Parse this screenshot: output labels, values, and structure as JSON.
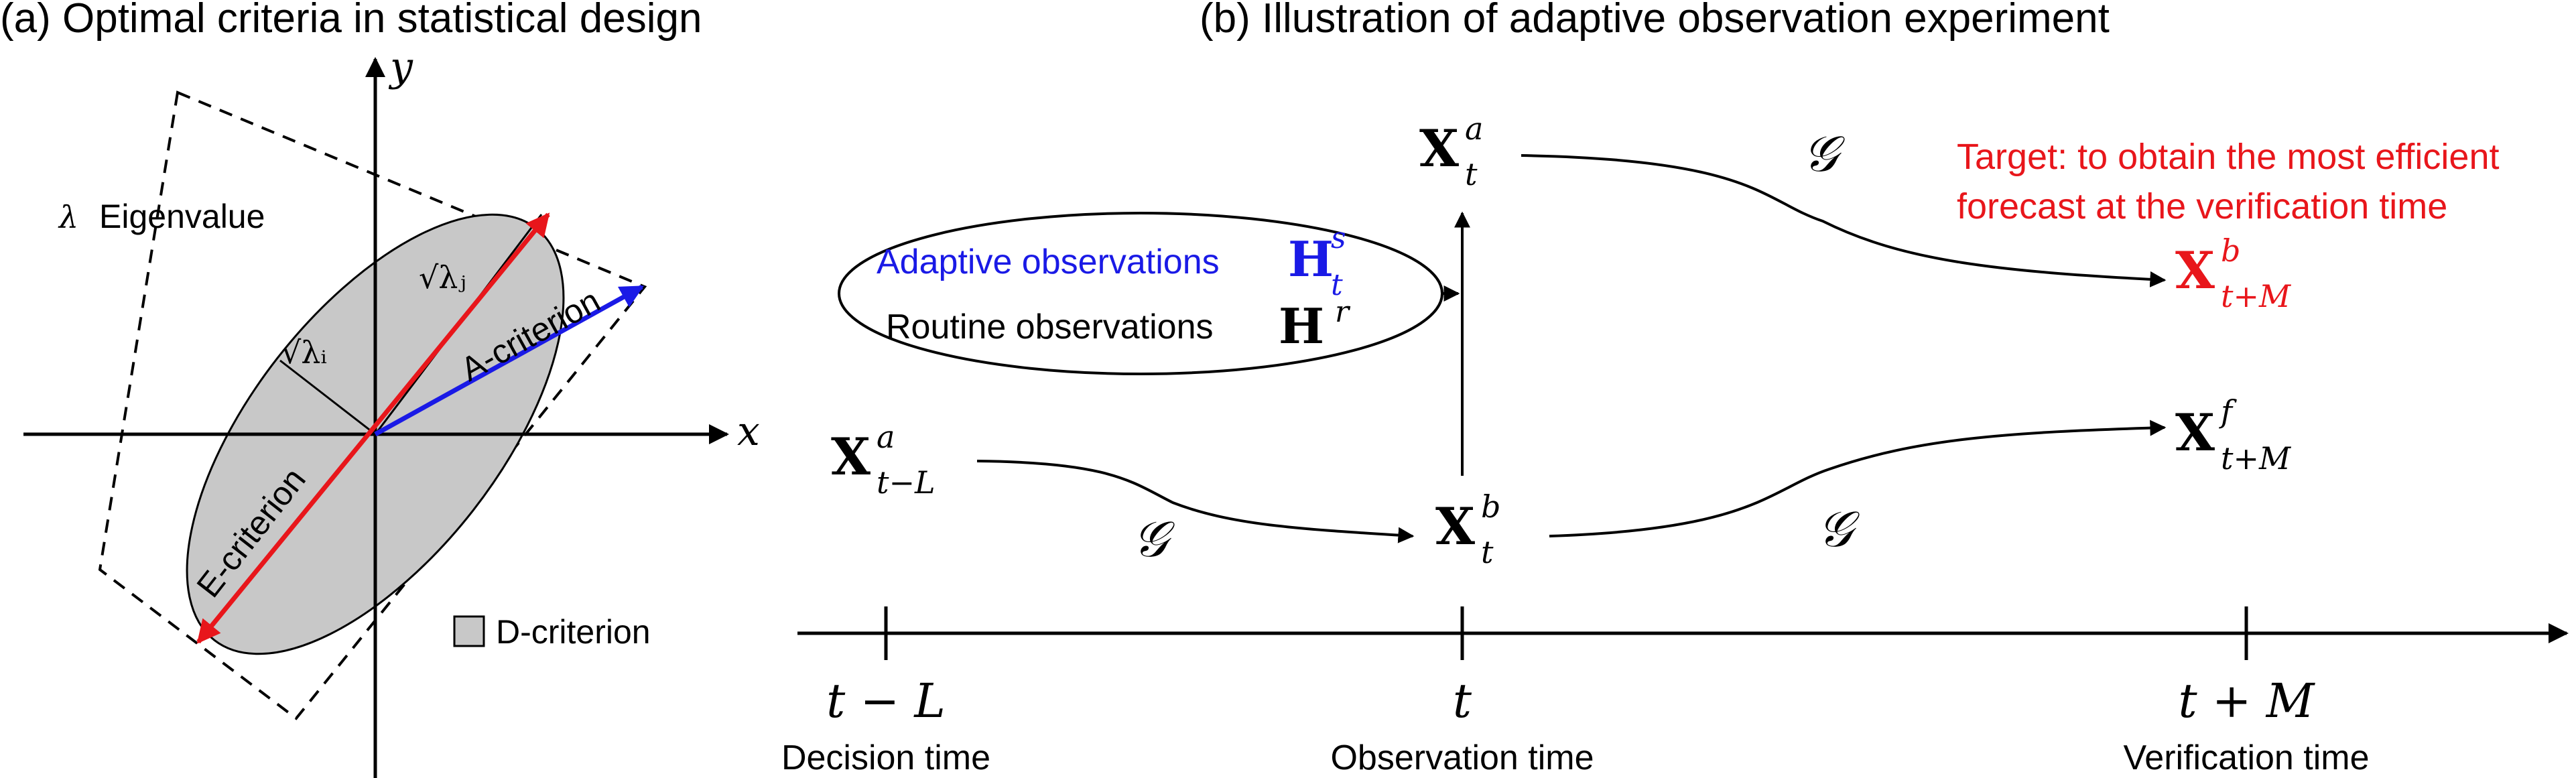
{
  "panel_a": {
    "title": "(a) Optimal criteria in statistical design",
    "axis_x": "x",
    "axis_y": "y",
    "lambda_symbol": "λ",
    "lambda_text": "Eigenvalue",
    "sqrt_lambda_i": "√λᵢ",
    "sqrt_lambda_j": "√λⱼ",
    "a_criterion": "A-criterion",
    "e_criterion": "E-criterion",
    "d_criterion": "D-criterion",
    "colors": {
      "ellipse_fill": "#c8c8c8",
      "e_arrow": "#e8161b",
      "a_arrow": "#1a1ae6"
    }
  },
  "panel_b": {
    "title": "(b) Illustration of adaptive observation experiment",
    "xa_main": "X",
    "xa_sup": "a",
    "xa_sub": "t",
    "g_top": "𝒢",
    "target_line1": "Target: to obtain the most efficient",
    "target_line2": "forecast at the verification time",
    "xb_main": "X",
    "xb_sup": "b",
    "xb_sub": "t+M",
    "adaptive_label": "Adaptive observations",
    "h_s_main": "H",
    "h_s_sup": "s",
    "h_s_sub": "t",
    "routine_label": "Routine observations",
    "h_r_main": "H",
    "h_r_sup": "r",
    "xl_main": "X",
    "xl_sup": "a",
    "xl_sub": "t−L",
    "xf_main": "X",
    "xf_sup": "f",
    "xf_sub": "t+M",
    "xtb_main": "X",
    "xtb_sup": "b",
    "xtb_sub": "t",
    "g_left": "𝒢",
    "g_right": "𝒢",
    "tick_left": "t − L",
    "tick_mid": "t",
    "tick_right": "t + M",
    "time_left": "Decision time",
    "time_mid": "Observation time",
    "time_right": "Verification time",
    "colors": {
      "target": "#e8161b",
      "adaptive": "#1a1ae6"
    }
  }
}
